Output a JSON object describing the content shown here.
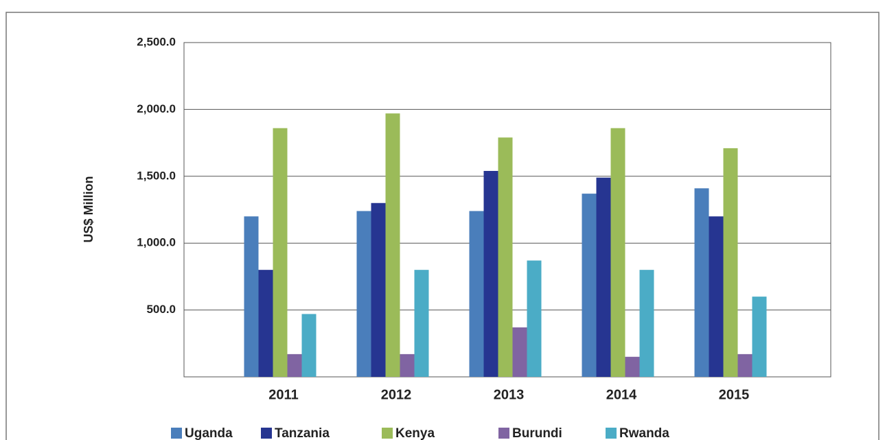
{
  "chart_data": {
    "type": "bar",
    "y_label": "US$ Million",
    "categories": [
      "2011",
      "2012",
      "2013",
      "2014",
      "2015"
    ],
    "series": [
      {
        "name": "Uganda",
        "color": "#4a7ebb",
        "values": [
          1200,
          1240,
          1240,
          1370,
          1410
        ]
      },
      {
        "name": "Tanzania",
        "color": "#263591",
        "values": [
          800,
          1300,
          1540,
          1490,
          1200
        ]
      },
      {
        "name": "Kenya",
        "color": "#9bbb59",
        "values": [
          1860,
          1970,
          1790,
          1860,
          1710
        ]
      },
      {
        "name": "Burundi",
        "color": "#8064a2",
        "values": [
          170,
          170,
          370,
          150,
          170
        ]
      },
      {
        "name": "Rwanda",
        "color": "#4bacc6",
        "values": [
          470,
          800,
          870,
          800,
          600
        ]
      }
    ],
    "ylim": [
      0,
      2500
    ],
    "yticks": [
      {
        "value": 500,
        "label": "500.0"
      },
      {
        "value": 1000,
        "label": "1,000.0"
      },
      {
        "value": 1500,
        "label": "1,500.0"
      },
      {
        "value": 2000,
        "label": "2,000.0"
      },
      {
        "value": 2500,
        "label": "2,500.0"
      }
    ],
    "grid": true,
    "legend": "bottom"
  }
}
